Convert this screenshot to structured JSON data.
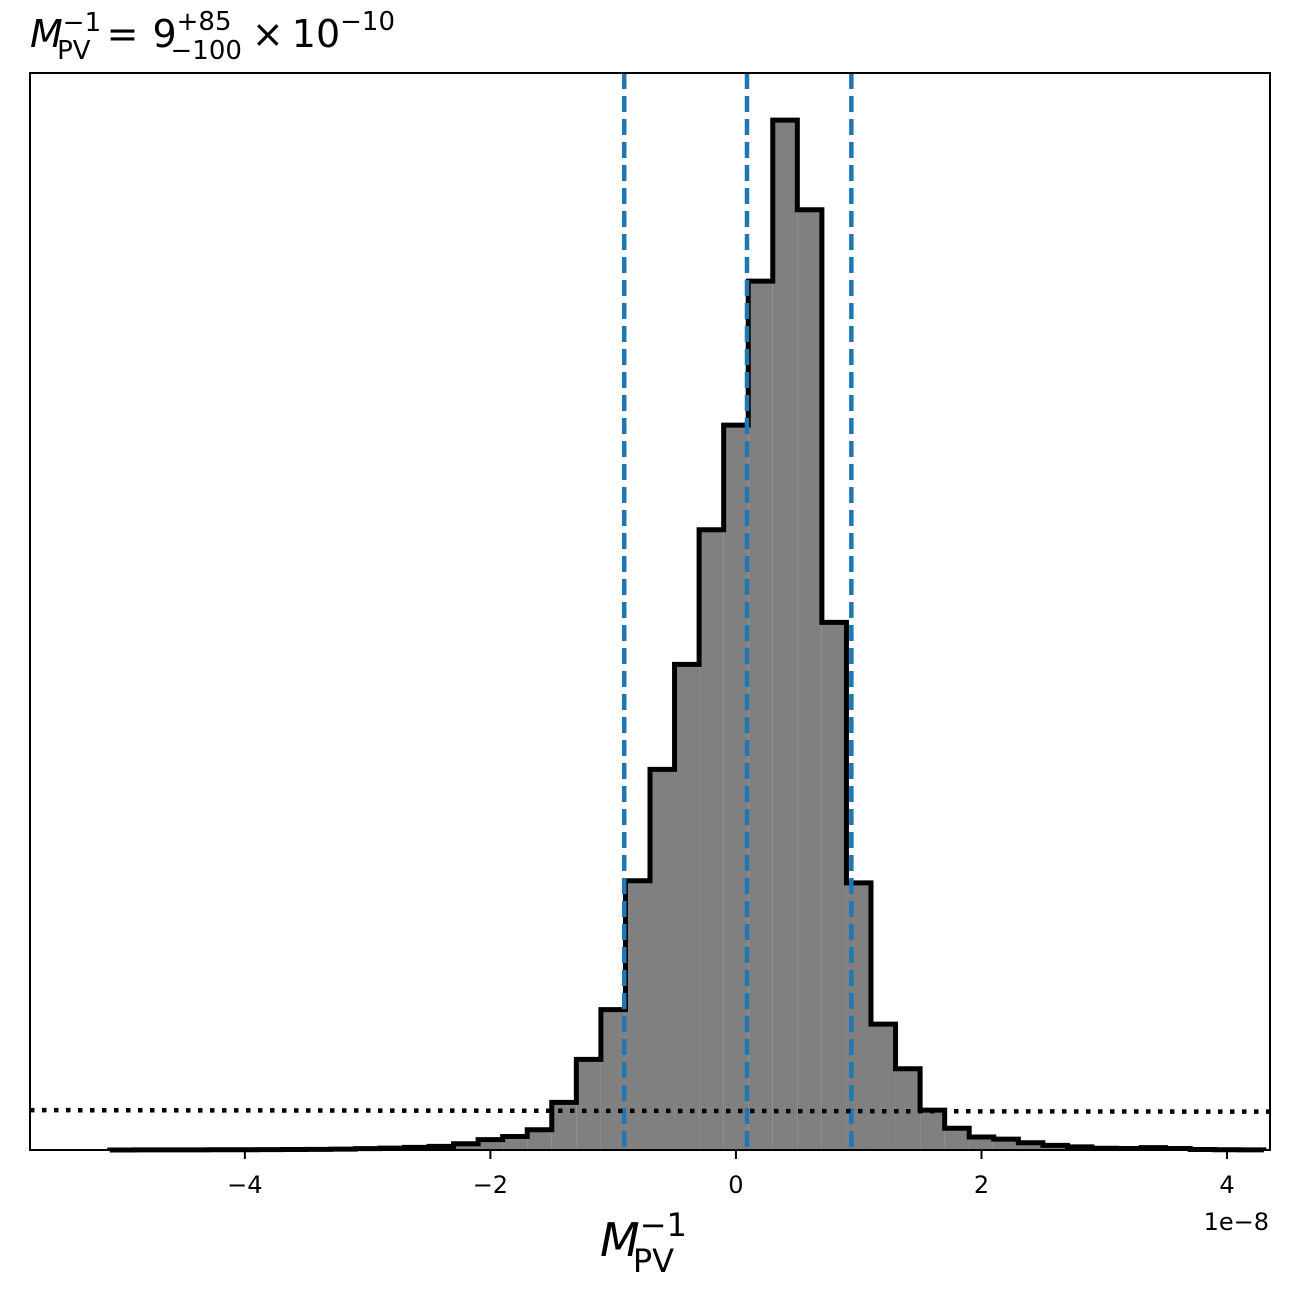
{
  "chart_data": {
    "type": "histogram",
    "title": {
      "symbol": "M",
      "symbol_sub": "PV",
      "symbol_sup": "−1",
      "equals": "=",
      "value": "9",
      "upper": "+85",
      "lower": "−100",
      "times": "×",
      "base": "10",
      "exponent": "−10"
    },
    "xlabel": {
      "symbol": "M",
      "sub": "PV",
      "sup": "−1"
    },
    "x_offset_label": "1e−8",
    "xlim": [
      -5.75,
      4.35
    ],
    "x_ticks": [
      -4,
      -2,
      0,
      2,
      4
    ],
    "x_tick_labels": [
      "−4",
      "−2",
      "0",
      "2",
      "4"
    ],
    "y_ticks_visible": false,
    "bin_edges": [
      -5.1,
      -4.9,
      -4.7,
      -4.5,
      -4.3,
      -4.1,
      -3.9,
      -3.7,
      -3.5,
      -3.3,
      -3.1,
      -2.9,
      -2.7,
      -2.5,
      -2.3,
      -2.1,
      -1.9,
      -1.7,
      -1.5,
      -1.3,
      -1.1,
      -0.9,
      -0.7,
      -0.5,
      -0.3,
      -0.1,
      0.1,
      0.3,
      0.5,
      0.7,
      0.9,
      1.1,
      1.3,
      1.5,
      1.7,
      1.9,
      2.1,
      2.3,
      2.5,
      2.7,
      2.9,
      3.1,
      3.3,
      3.5,
      3.7,
      3.9,
      4.1,
      4.3
    ],
    "counts": [
      0.01,
      0.02,
      0.02,
      0.03,
      0.04,
      0.05,
      0.07,
      0.1,
      0.13,
      0.18,
      0.26,
      0.36,
      0.5,
      0.7,
      1.2,
      2.0,
      2.6,
      3.9,
      9.2,
      17.5,
      27.1,
      52.0,
      73.5,
      93.8,
      119.8,
      140.0,
      167.8,
      198.9,
      181.6,
      101.9,
      51.6,
      24.3,
      15.7,
      7.7,
      4.2,
      2.5,
      2.1,
      1.4,
      0.9,
      0.6,
      0.35,
      0.3,
      0.45,
      0.3,
      0.1,
      0.06,
      0.03
    ],
    "fill_color": "#808080",
    "edge_color": "#000000",
    "quantile_lines": [
      {
        "label": "lower",
        "x": -0.91,
        "color": "#1f77b4",
        "style": "dashed"
      },
      {
        "label": "median",
        "x": 0.09,
        "color": "#1f77b4",
        "style": "dashed"
      },
      {
        "label": "upper",
        "x": 0.94,
        "color": "#1f77b4",
        "style": "dashed"
      }
    ],
    "prior_line": {
      "style": "dotted",
      "color": "#000000",
      "y_left": 7.7,
      "y_right": 7.4
    },
    "ylim": [
      0,
      208
    ]
  }
}
